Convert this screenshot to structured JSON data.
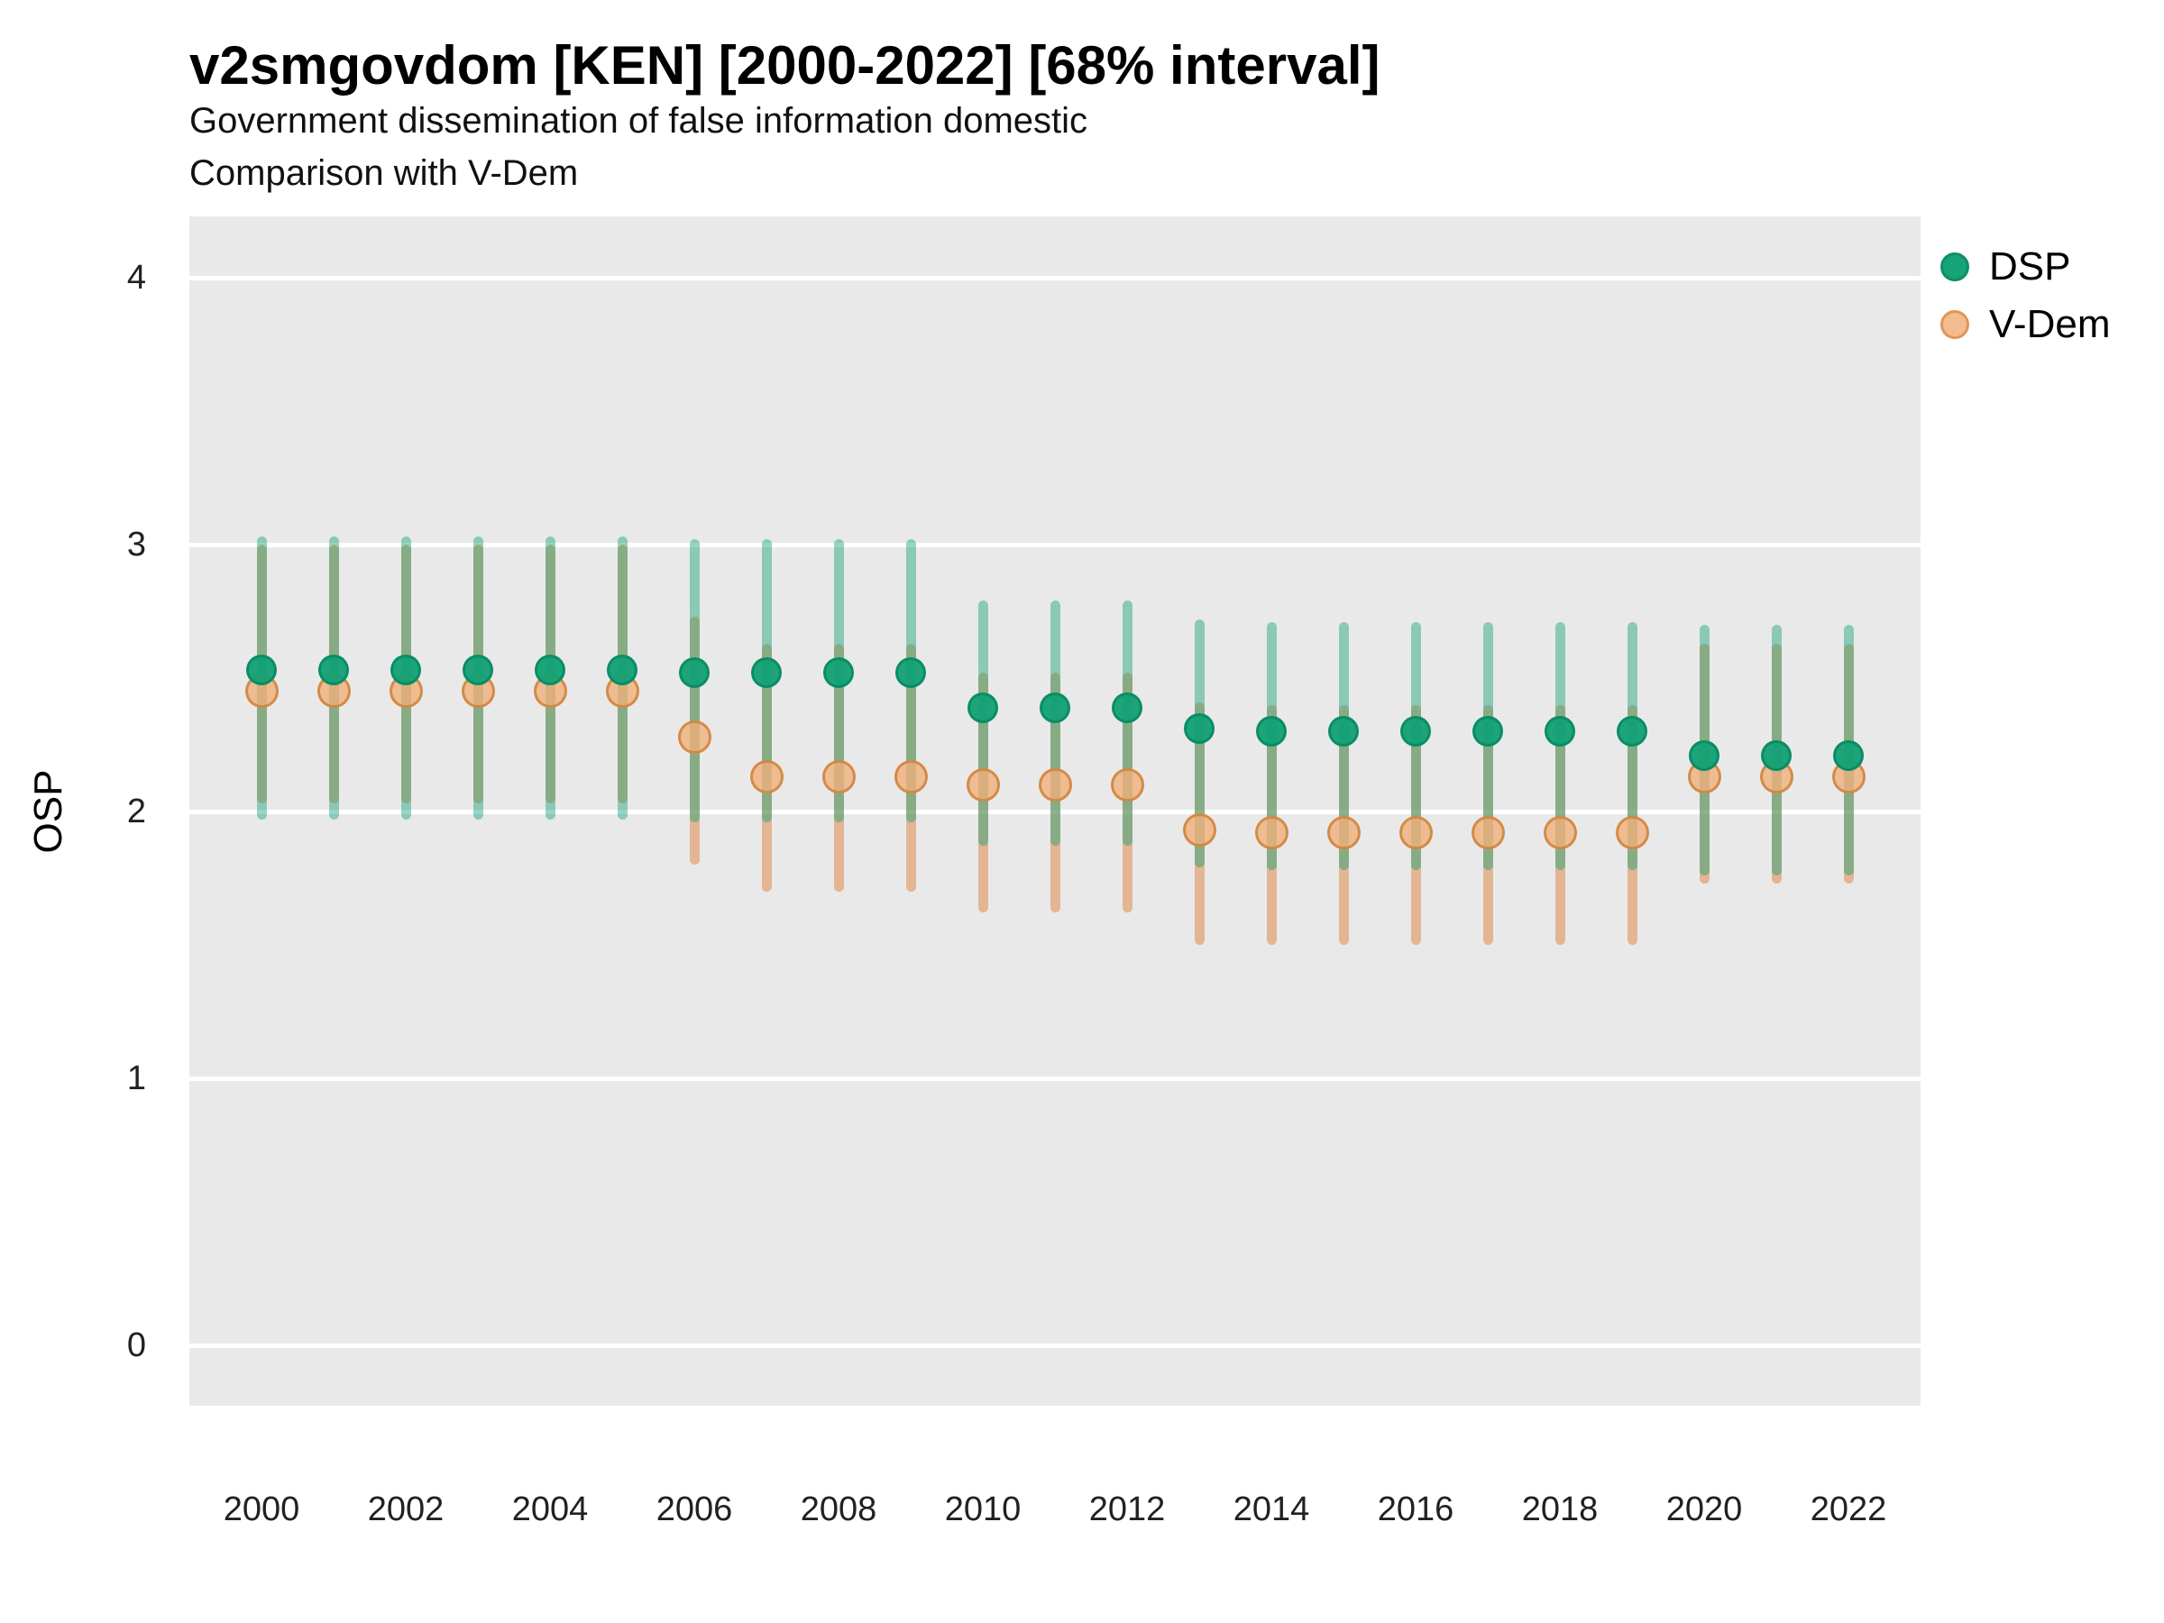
{
  "header": {
    "title": "v2smgovdom [KEN] [2000-2022] [68% interval]",
    "subtitle1": "Government dissemination of false information domestic",
    "subtitle2": "Comparison with V-Dem"
  },
  "axes": {
    "y_title": "OSP",
    "y_ticks": [
      0,
      1,
      2,
      3,
      4
    ],
    "x_ticks": [
      2000,
      2002,
      2004,
      2006,
      2008,
      2010,
      2012,
      2014,
      2016,
      2018,
      2020,
      2022
    ]
  },
  "legend": {
    "items": [
      {
        "label": "DSP",
        "fill": "#16a378",
        "ring": "#0e8f67"
      },
      {
        "label": "V-Dem",
        "fill": "#f2bc8e",
        "ring": "#e09659"
      }
    ]
  },
  "colors": {
    "panel_bg": "#e9e9e9",
    "gridline": "#ffffff",
    "dsp_bar": "rgba(23,162,118,0.45)",
    "vdem_bar": "rgba(224,138,74,0.55)",
    "dsp_point_fill": "rgba(18,160,116,0.95)",
    "dsp_point_ring": "rgba(10,140,100,0.95)",
    "vdem_point_fill": "rgba(240,176,122,0.80)",
    "vdem_point_ring": "rgba(206,130,60,0.85)"
  },
  "chart_data": {
    "type": "scatter",
    "subtype": "pointrange-interval-comparison",
    "title": "v2smgovdom [KEN] [2000-2022] [68% interval]",
    "xlabel": "",
    "ylabel": "OSP",
    "ylim": [
      -0.23,
      4.23
    ],
    "grid": "horizontal-white-on-gray",
    "legend_position": "right-top",
    "interval_level": "68%",
    "x": [
      2000,
      2001,
      2002,
      2003,
      2004,
      2005,
      2006,
      2007,
      2008,
      2009,
      2010,
      2011,
      2012,
      2013,
      2014,
      2015,
      2016,
      2017,
      2018,
      2019,
      2020,
      2021,
      2022
    ],
    "series": [
      {
        "name": "DSP",
        "est": [
          2.53,
          2.53,
          2.53,
          2.53,
          2.53,
          2.53,
          2.52,
          2.52,
          2.52,
          2.52,
          2.39,
          2.39,
          2.39,
          2.31,
          2.3,
          2.3,
          2.3,
          2.3,
          2.3,
          2.3,
          2.21,
          2.21,
          2.21
        ],
        "lo": [
          1.97,
          1.97,
          1.97,
          1.97,
          1.97,
          1.97,
          1.96,
          1.96,
          1.96,
          1.96,
          1.87,
          1.87,
          1.87,
          1.79,
          1.78,
          1.78,
          1.78,
          1.78,
          1.78,
          1.78,
          1.76,
          1.76,
          1.76
        ],
        "hi": [
          3.03,
          3.03,
          3.03,
          3.03,
          3.03,
          3.03,
          3.02,
          3.02,
          3.02,
          3.02,
          2.79,
          2.79,
          2.79,
          2.72,
          2.71,
          2.71,
          2.71,
          2.71,
          2.71,
          2.71,
          2.7,
          2.7,
          2.7
        ]
      },
      {
        "name": "V-Dem",
        "est": [
          2.45,
          2.45,
          2.45,
          2.45,
          2.45,
          2.45,
          2.28,
          2.13,
          2.13,
          2.13,
          2.1,
          2.1,
          2.1,
          1.93,
          1.92,
          1.92,
          1.92,
          1.92,
          1.92,
          1.92,
          2.13,
          2.13,
          2.13
        ],
        "lo": [
          2.03,
          2.03,
          2.03,
          2.03,
          2.03,
          2.03,
          1.8,
          1.7,
          1.7,
          1.7,
          1.62,
          1.62,
          1.62,
          1.5,
          1.5,
          1.5,
          1.5,
          1.5,
          1.5,
          1.5,
          1.73,
          1.73,
          1.73
        ],
        "hi": [
          3.0,
          3.0,
          3.0,
          3.0,
          3.0,
          3.0,
          2.73,
          2.63,
          2.63,
          2.63,
          2.52,
          2.52,
          2.52,
          2.41,
          2.4,
          2.4,
          2.4,
          2.4,
          2.4,
          2.4,
          2.63,
          2.63,
          2.63
        ]
      }
    ]
  }
}
